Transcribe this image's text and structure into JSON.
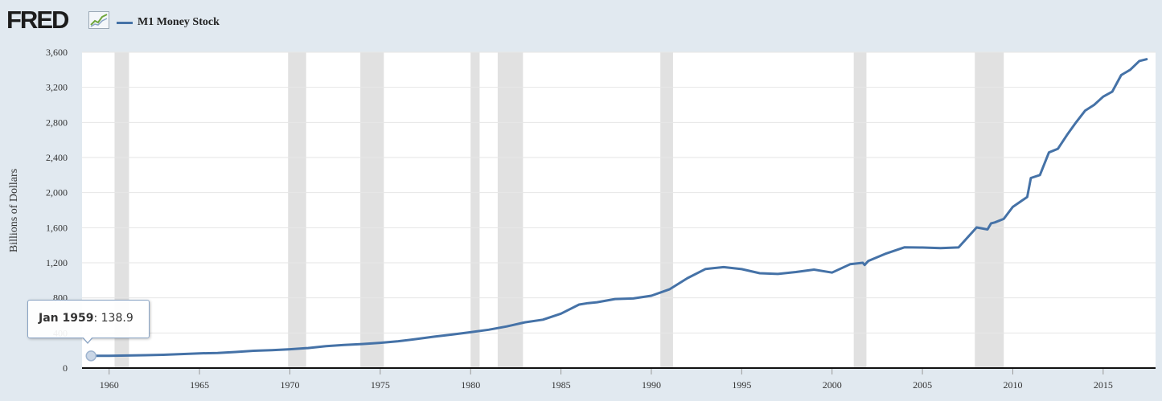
{
  "header": {
    "logo_text": "FRED",
    "logo_icon": "line-graph-icon",
    "legend_series": "M1 Money Stock",
    "legend_color": "#4572a7"
  },
  "tooltip": {
    "date": "Jan 1959",
    "separator": ":",
    "value": "138.9"
  },
  "colors": {
    "series": "#4572a7",
    "recession": "#e1e1e1",
    "grid": "#e6e6e6",
    "plot_background": "#ffffff",
    "page_background": "#e1e9f0"
  },
  "chart_data": {
    "type": "line",
    "title": "",
    "xlabel": "",
    "ylabel": "Billions of Dollars",
    "xlim": [
      1958.5,
      2017.9
    ],
    "ylim": [
      0,
      3600
    ],
    "x_ticks": [
      1960,
      1965,
      1970,
      1975,
      1980,
      1985,
      1990,
      1995,
      2000,
      2005,
      2010,
      2015
    ],
    "x_tick_labels": [
      "1960",
      "1965",
      "1970",
      "1975",
      "1980",
      "1985",
      "1990",
      "1995",
      "2000",
      "2005",
      "2010",
      "2015"
    ],
    "y_ticks": [
      0,
      400,
      800,
      1200,
      1600,
      2000,
      2400,
      2800,
      3200,
      3600
    ],
    "y_tick_labels": [
      "0",
      "400",
      "800",
      "1,200",
      "1,600",
      "2,000",
      "2,400",
      "2,800",
      "3,200",
      "3,600"
    ],
    "grid": true,
    "legend": "top-left",
    "recessions": [
      [
        1960.3,
        1961.1
      ],
      [
        1969.9,
        1970.9
      ],
      [
        1973.9,
        1975.2
      ],
      [
        1980.0,
        1980.5
      ],
      [
        1981.5,
        1982.9
      ],
      [
        1990.5,
        1991.2
      ],
      [
        2001.2,
        2001.9
      ],
      [
        2007.9,
        2009.5
      ]
    ],
    "series": [
      {
        "name": "M1 Money Stock",
        "color": "#4572a7",
        "x": [
          1959.0,
          1960.0,
          1961.0,
          1962.0,
          1963.0,
          1964.0,
          1965.0,
          1966.0,
          1967.0,
          1968.0,
          1969.0,
          1970.0,
          1971.0,
          1972.0,
          1973.0,
          1974.0,
          1975.0,
          1976.0,
          1977.0,
          1978.0,
          1979.0,
          1980.0,
          1981.0,
          1982.0,
          1983.0,
          1984.0,
          1985.0,
          1986.0,
          1986.5,
          1987.0,
          1988.0,
          1989.0,
          1990.0,
          1991.0,
          1992.0,
          1993.0,
          1994.0,
          1995.0,
          1996.0,
          1997.0,
          1998.0,
          1999.0,
          2000.0,
          2001.0,
          2001.7,
          2001.8,
          2002.0,
          2003.0,
          2004.0,
          2005.0,
          2006.0,
          2007.0,
          2008.0,
          2008.6,
          2008.8,
          2009.0,
          2009.5,
          2010.0,
          2010.8,
          2011.0,
          2011.5,
          2012.0,
          2012.5,
          2013.0,
          2013.5,
          2014.0,
          2014.5,
          2015.0,
          2015.5,
          2016.0,
          2016.5,
          2017.0,
          2017.4
        ],
        "y": [
          138.9,
          140.3,
          143.0,
          146.4,
          150.7,
          159.4,
          167.9,
          172.0,
          183.3,
          197.4,
          203.9,
          214.4,
          228.3,
          249.2,
          262.8,
          274.3,
          287.5,
          306.3,
          331.1,
          358.2,
          382.8,
          408.5,
          436.7,
          474.8,
          521.4,
          551.6,
          620.1,
          724.0,
          740.0,
          750.0,
          786.9,
          792.9,
          824.7,
          897.0,
          1024.9,
          1129.6,
          1150.7,
          1127.5,
          1081.3,
          1072.3,
          1095.0,
          1122.2,
          1088.6,
          1183.2,
          1200.0,
          1175.0,
          1220.0,
          1306.1,
          1376.0,
          1374.5,
          1366.5,
          1374.8,
          1603.4,
          1580.0,
          1650.0,
          1660.0,
          1700.0,
          1836.7,
          1950.0,
          2166.0,
          2200.0,
          2458.0,
          2500.0,
          2657.0,
          2800.0,
          2933.0,
          3000.0,
          3093.0,
          3150.0,
          3340.0,
          3400.0,
          3500.0,
          3520.0
        ]
      }
    ]
  }
}
